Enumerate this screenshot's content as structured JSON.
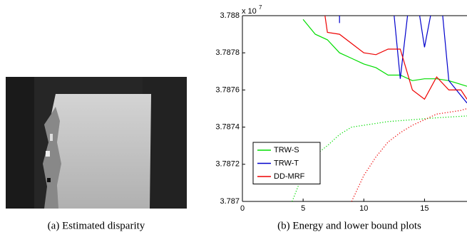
{
  "captions": {
    "left": "(a) Estimated disparity",
    "right": "(b) Energy and lower bound plots"
  },
  "chart_data": {
    "type": "line",
    "y_multiplier": {
      "base": "x 10",
      "exponent": "7"
    },
    "xlim": [
      0,
      18.5
    ],
    "ylim": [
      3.787,
      3.788
    ],
    "xticks": [
      0,
      5,
      10,
      15
    ],
    "yticks": [
      3.787,
      3.7872,
      3.7874,
      3.7876,
      3.7878,
      3.788
    ],
    "legend": "lower left",
    "series": [
      {
        "name": "TRW-S",
        "color": "#00dd00",
        "x": [
          5,
          6,
          7,
          8,
          9,
          10,
          11,
          12,
          13,
          14,
          15,
          16,
          17,
          18,
          18.5
        ],
        "values": [
          3.78798,
          3.7879,
          3.78787,
          3.7878,
          3.78777,
          3.78774,
          3.78772,
          3.78768,
          3.78768,
          3.78765,
          3.78766,
          3.78766,
          3.78765,
          3.78763,
          3.78762
        ]
      },
      {
        "name": "TRW-T",
        "color": "#0000cc",
        "x": [
          8,
          8,
          null,
          12.5,
          13,
          13.6,
          null,
          14.6,
          15,
          15.5,
          null,
          16.5,
          17,
          18.5
        ],
        "values": [
          3.788,
          3.78796,
          null,
          3.788,
          3.78766,
          3.788,
          null,
          3.788,
          3.78783,
          3.788,
          null,
          3.788,
          3.78765,
          3.78753
        ]
      },
      {
        "name": "DD-MRF",
        "color": "#ee0000",
        "x": [
          6.8,
          7,
          8,
          9,
          10,
          11,
          12,
          13,
          14,
          15,
          16,
          17,
          18,
          18.5
        ],
        "values": [
          3.788,
          3.78791,
          3.7879,
          3.78785,
          3.7878,
          3.78779,
          3.78782,
          3.78782,
          3.7876,
          3.78755,
          3.78767,
          3.7876,
          3.7876,
          3.78755
        ]
      }
    ],
    "lower_bounds": [
      {
        "color": "#00dd00",
        "x": [
          4.1,
          5,
          6,
          7,
          8,
          9,
          10,
          12,
          14,
          16,
          18.5
        ],
        "values": [
          3.787,
          3.78715,
          3.78725,
          3.7873,
          3.78736,
          3.7874,
          3.78741,
          3.78743,
          3.78744,
          3.78745,
          3.78746
        ]
      },
      {
        "color": "#ee0000",
        "x": [
          9,
          10,
          11,
          12,
          13,
          14,
          15,
          16,
          17,
          18,
          18.5
        ],
        "values": [
          3.787,
          3.78714,
          3.78724,
          3.78732,
          3.78737,
          3.78741,
          3.78744,
          3.78747,
          3.78748,
          3.78749,
          3.7875
        ]
      }
    ]
  }
}
